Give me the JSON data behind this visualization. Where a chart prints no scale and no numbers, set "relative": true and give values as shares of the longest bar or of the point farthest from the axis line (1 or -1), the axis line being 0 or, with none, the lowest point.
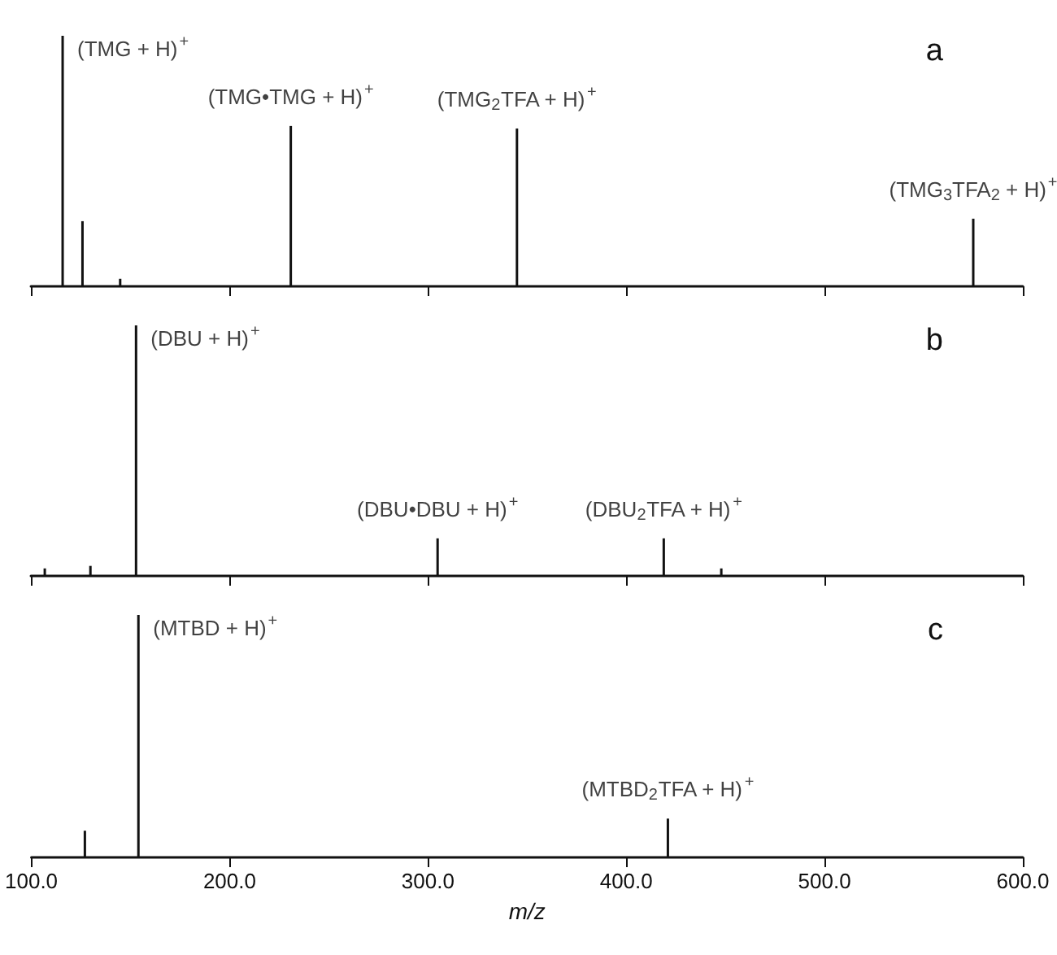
{
  "chart_data": [
    {
      "type": "bar",
      "relative": true,
      "color": "#111111",
      "x": [
        116,
        126,
        145,
        231,
        345,
        575
      ],
      "values": [
        1.0,
        0.26,
        0.03,
        0.64,
        0.63,
        0.27
      ],
      "xlim": [
        100,
        600
      ],
      "xticks": [
        {
          "value": 100,
          "label": null
        },
        {
          "value": 200,
          "label": null
        },
        {
          "value": 300,
          "label": null
        },
        {
          "value": 400,
          "label": null
        },
        {
          "value": 500,
          "label": null
        },
        {
          "value": 600,
          "label": null
        }
      ],
      "tick_labels": false,
      "grid": false,
      "annotations": [
        "a",
        {
          "text": "(TMG + H)$^{+}$",
          "x": 116,
          "y": 1.0
        },
        {
          "text": "(TMG•TMG + H)$^{+}$",
          "x": 231,
          "y": 0.64
        },
        {
          "text": "(TMG$_{2}$TFA + H)$^{+}$",
          "x": 345,
          "y": 0.63
        },
        {
          "text": "(TMG$_{3}$TFA$_{2}$ + H)$^{+}$",
          "x": 575,
          "y": 0.27
        }
      ]
    },
    {
      "type": "bar",
      "relative": true,
      "color": "#111111",
      "x": [
        107,
        130,
        153,
        305,
        419,
        448
      ],
      "values": [
        0.03,
        0.04,
        1.0,
        0.15,
        0.15,
        0.03
      ],
      "xlim": [
        100,
        600
      ],
      "xticks": [
        {
          "value": 100,
          "label": null
        },
        {
          "value": 200,
          "label": null
        },
        {
          "value": 300,
          "label": null
        },
        {
          "value": 400,
          "label": null
        },
        {
          "value": 500,
          "label": null
        },
        {
          "value": 600,
          "label": null
        }
      ],
      "tick_labels": false,
      "grid": false,
      "annotations": [
        "b",
        {
          "text": "(DBU + H)$^{+}$",
          "x": 153,
          "y": 1.0
        },
        {
          "text": "(DBU•DBU + H)$^{+}$",
          "x": 305,
          "y": 0.15
        },
        {
          "text": "(DBU$_{2}$TFA + H)$^{+}$",
          "x": 419,
          "y": 0.15
        }
      ]
    },
    {
      "type": "bar",
      "relative": true,
      "color": "#111111",
      "x": [
        127,
        154,
        421
      ],
      "values": [
        0.11,
        1.0,
        0.16
      ],
      "xlim": [
        100,
        600
      ],
      "xticks": [
        {
          "value": 100,
          "label": "100.0"
        },
        {
          "value": 200,
          "label": "200.0"
        },
        {
          "value": 300,
          "label": "300.0"
        },
        {
          "value": 400,
          "label": "400.0"
        },
        {
          "value": 500,
          "label": "500.0"
        },
        {
          "value": 600,
          "label": "600.0"
        }
      ],
      "tick_labels": "x",
      "grid": false,
      "xlabel": "m/z",
      "annotations": [
        "c",
        {
          "text": "(MTBD + H)$^{+}$",
          "x": 154,
          "y": 1.0
        },
        {
          "text": "(MTBD$_{2}$TFA + H)$^{+}$",
          "x": 421,
          "y": 0.16
        }
      ]
    }
  ]
}
